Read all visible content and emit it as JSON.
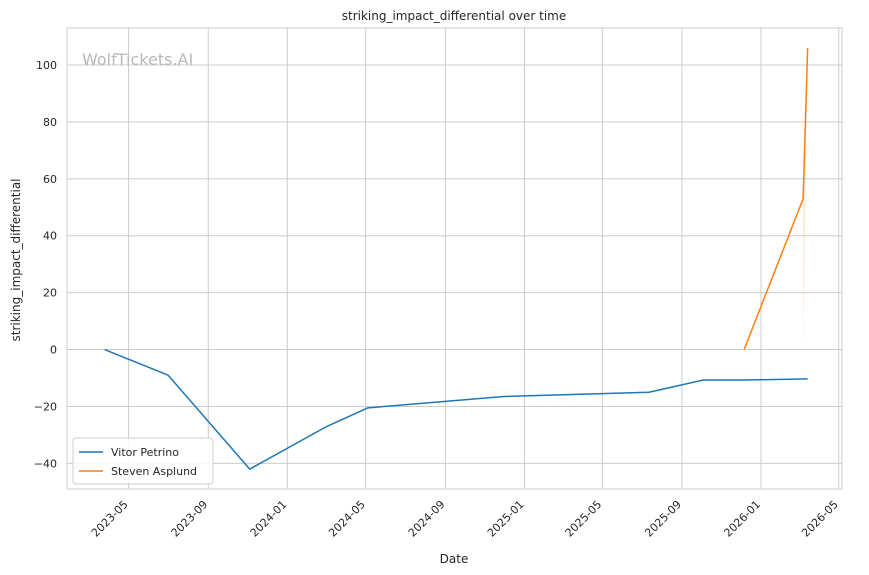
{
  "chart_data": {
    "type": "line",
    "title": "striking_impact_differential over time",
    "xlabel": "Date",
    "ylabel": "striking_impact_differential",
    "watermark": "WolfTickets.AI",
    "x_ticks": [
      "2023-05",
      "2023-09",
      "2024-01",
      "2024-05",
      "2024-09",
      "2025-01",
      "2025-05",
      "2025-09",
      "2026-01",
      "2026-05"
    ],
    "y_ticks": [
      -40,
      -20,
      0,
      20,
      40,
      60,
      80,
      100
    ],
    "xlim": [
      "2023-01-26",
      "2026-05-06"
    ],
    "ylim": [
      -49,
      113
    ],
    "grid": true,
    "legend_position": "lower-left",
    "series": [
      {
        "name": "Vitor Petrino",
        "color": "#1f77b4",
        "points": [
          {
            "x": "2023-03-25",
            "y": 0
          },
          {
            "x": "2023-07-01",
            "y": -9
          },
          {
            "x": "2023-11-04",
            "y": -42
          },
          {
            "x": "2024-03-02",
            "y": -27
          },
          {
            "x": "2024-05-04",
            "y": -20.5
          },
          {
            "x": "2024-11-30",
            "y": -16.5
          },
          {
            "x": "2025-07-12",
            "y": -15
          },
          {
            "x": "2025-10-04",
            "y": -10.7
          },
          {
            "x": "2025-12-06",
            "y": -10.7
          },
          {
            "x": "2026-03-14",
            "y": -10.3
          }
        ]
      },
      {
        "name": "Steven Asplund",
        "color": "#ff7f0e",
        "points": [
          {
            "x": "2025-12-06",
            "y": 0
          },
          {
            "x": "2026-03-07",
            "y": 53
          },
          {
            "x": "2026-03-14",
            "y": 106
          }
        ]
      }
    ]
  }
}
